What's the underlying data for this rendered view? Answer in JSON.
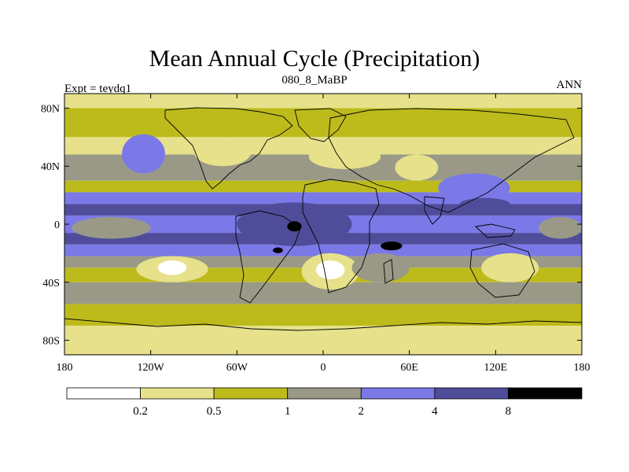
{
  "chart_data": {
    "type": "heatmap",
    "title": "Mean Annual Cycle (Precipitation)",
    "subtitle": "080_8_MaBP",
    "left_label": "Expt = teydq1",
    "right_label": "ANN",
    "x_ticks": [
      "180",
      "120W",
      "60W",
      "0",
      "60E",
      "120E",
      "180"
    ],
    "x_tick_values": [
      -180,
      -120,
      -60,
      0,
      60,
      120,
      180
    ],
    "y_ticks": [
      "80N",
      "40N",
      "0",
      "40S",
      "80S"
    ],
    "y_tick_values": [
      80,
      40,
      0,
      -40,
      -80
    ],
    "xlim": [
      -180,
      180
    ],
    "ylim": [
      -90,
      90
    ],
    "colorbar": {
      "colors": [
        "#ffffff",
        "#e6e18a",
        "#bdbb1b",
        "#9a9987",
        "#7b78e8",
        "#4f4d9a",
        "#000000"
      ],
      "boundaries": [
        "0.2",
        "0.5",
        "1",
        "2",
        "4",
        "8"
      ]
    },
    "bands": [
      {
        "lat": [
          80,
          90
        ],
        "level": 1
      },
      {
        "lat": [
          60,
          80
        ],
        "level": 2
      },
      {
        "lat": [
          48,
          60
        ],
        "level": 1
      },
      {
        "lat": [
          30,
          48
        ],
        "level": 3
      },
      {
        "lat": [
          22,
          30
        ],
        "level": 2
      },
      {
        "lat": [
          14,
          22
        ],
        "level": 4
      },
      {
        "lat": [
          6,
          14
        ],
        "level": 5
      },
      {
        "lat": [
          -6,
          6
        ],
        "level": 4
      },
      {
        "lat": [
          -14,
          -6
        ],
        "level": 5
      },
      {
        "lat": [
          -22,
          -14
        ],
        "level": 4
      },
      {
        "lat": [
          -30,
          -22
        ],
        "level": 3
      },
      {
        "lat": [
          -40,
          -30
        ],
        "level": 2
      },
      {
        "lat": [
          -55,
          -40
        ],
        "level": 3
      },
      {
        "lat": [
          -70,
          -55
        ],
        "level": 2
      },
      {
        "lat": [
          -90,
          -70
        ],
        "level": 1
      }
    ],
    "patches": [
      {
        "lon": [
          -60,
          20
        ],
        "lat": [
          -15,
          15
        ],
        "level": 5
      },
      {
        "lon": [
          -25,
          -15
        ],
        "lat": [
          -5,
          2
        ],
        "level": 6
      },
      {
        "lon": [
          40,
          55
        ],
        "lat": [
          -18,
          -12
        ],
        "level": 6
      },
      {
        "lon": [
          -35,
          -28
        ],
        "lat": [
          -20,
          -16
        ],
        "level": 6
      },
      {
        "lon": [
          -130,
          -80
        ],
        "lat": [
          -40,
          -22
        ],
        "level": 1
      },
      {
        "lon": [
          -115,
          -95
        ],
        "lat": [
          -35,
          -25
        ],
        "level": 0
      },
      {
        "lon": [
          -15,
          25
        ],
        "lat": [
          -45,
          -20
        ],
        "level": 1
      },
      {
        "lon": [
          -5,
          15
        ],
        "lat": [
          -38,
          -25
        ],
        "level": 0
      },
      {
        "lon": [
          -90,
          -50
        ],
        "lat": [
          40,
          60
        ],
        "level": 1
      },
      {
        "lon": [
          -140,
          -110
        ],
        "lat": [
          35,
          62
        ],
        "level": 4
      },
      {
        "lon": [
          80,
          130
        ],
        "lat": [
          15,
          35
        ],
        "level": 4
      },
      {
        "lon": [
          95,
          130
        ],
        "lat": [
          10,
          18
        ],
        "level": 5
      },
      {
        "lon": [
          -10,
          40
        ],
        "lat": [
          38,
          55
        ],
        "level": 1
      },
      {
        "lon": [
          50,
          80
        ],
        "lat": [
          30,
          48
        ],
        "level": 1
      },
      {
        "lon": [
          20,
          60
        ],
        "lat": [
          -40,
          -20
        ],
        "level": 3
      },
      {
        "lon": [
          110,
          150
        ],
        "lat": [
          -40,
          -20
        ],
        "level": 1
      },
      {
        "lon": [
          -175,
          -120
        ],
        "lat": [
          -10,
          5
        ],
        "level": 3
      },
      {
        "lon": [
          150,
          180
        ],
        "lat": [
          -10,
          5
        ],
        "level": 3
      }
    ]
  }
}
